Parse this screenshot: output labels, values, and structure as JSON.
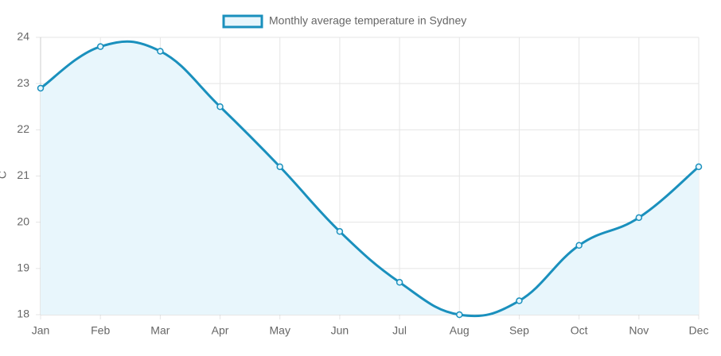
{
  "chart_data": {
    "type": "line",
    "y_label": "C",
    "categories": [
      "Jan",
      "Feb",
      "Mar",
      "Apr",
      "May",
      "Jun",
      "Jul",
      "Aug",
      "Sep",
      "Oct",
      "Nov",
      "Dec"
    ],
    "series": [
      {
        "name": "Monthly average temperature in Sydney",
        "color": "#1a90bd",
        "fill": "#e8f6fc",
        "values": [
          22.9,
          23.8,
          23.7,
          22.5,
          21.2,
          19.8,
          18.7,
          18.0,
          18.3,
          19.5,
          20.1,
          21.2
        ]
      }
    ],
    "ylim": [
      18,
      24
    ],
    "yticks": [
      18,
      19,
      20,
      21,
      22,
      23,
      24
    ],
    "grid": true,
    "legend": "top"
  }
}
